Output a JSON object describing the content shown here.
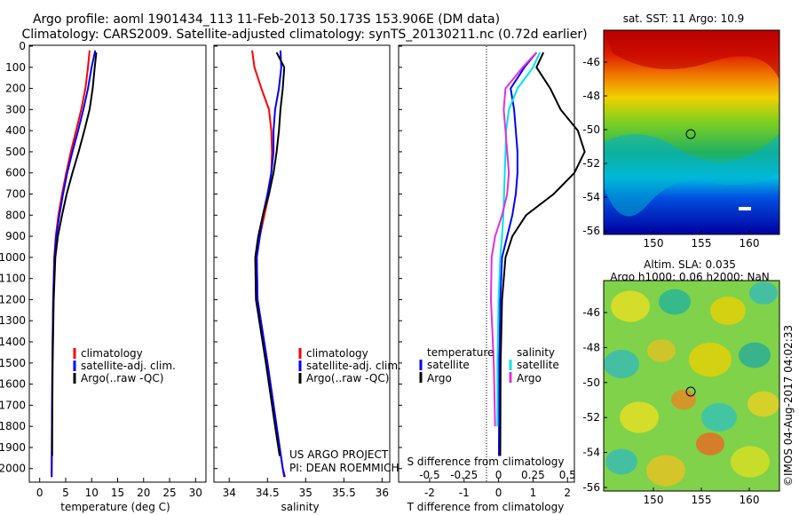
{
  "title": {
    "line1": "Argo profile: aoml 1901434_113 11-Feb-2013 50.173S 153.906E (DM data)",
    "line2": "Climatology: CARS2009. Satellite-adjusted climatology: synTS_20130211.nc (0.72d earlier)"
  },
  "colors": {
    "climatology": "#ff0000",
    "satellite": "#0000ff",
    "argo": "#000000",
    "s_satellite": "#00e5e5",
    "s_argo": "#e030e0"
  },
  "depth_axis": {
    "ticks": [
      0,
      100,
      200,
      300,
      400,
      500,
      600,
      700,
      800,
      900,
      1000,
      1100,
      1200,
      1300,
      1400,
      1500,
      1600,
      1700,
      1800,
      1900,
      2000
    ],
    "range": [
      0,
      2060
    ]
  },
  "panels": {
    "temperature": {
      "xlabel": "temperature (deg C)",
      "xticks": [
        0,
        5,
        10,
        15,
        20,
        25,
        30
      ],
      "xlim": [
        -2,
        32
      ],
      "legend": [
        "climatology",
        "satellite-adj. clim.",
        "Argo(..raw -QC)"
      ]
    },
    "salinity": {
      "xlabel": "salinity",
      "xticks": [
        34,
        34.5,
        35,
        35.5,
        36
      ],
      "xlim": [
        33.8,
        36.1
      ],
      "legend": [
        "climatology",
        "satellite-adj. clim.",
        "Argo(..raw -QC)"
      ],
      "credit1": "US ARGO PROJECT",
      "credit2": "PI: DEAN ROEMMICH"
    },
    "difference": {
      "xlabel": "T difference from climatology",
      "xticks": [
        "-2",
        "-1",
        "0",
        "1",
        "2"
      ],
      "xlim": [
        -2.9,
        2.2
      ],
      "top_label": "S difference from climatology",
      "top_ticks": [
        "-0.5",
        "-0.25",
        "0",
        "0.25",
        "0.5"
      ],
      "legend_t_title": "temperature",
      "legend_s_title": "salinity",
      "legend_items": [
        "satellite",
        "Argo"
      ]
    }
  },
  "maps": {
    "sst": {
      "title": "sat. SST: 11 Argo: 10.9",
      "yticks": [
        "-46",
        "-48",
        "-50",
        "-52",
        "-54",
        "-56"
      ],
      "xticks": [
        "150",
        "155",
        "160"
      ]
    },
    "sla": {
      "title1": "Altim. SLA: 0.035",
      "title2": "Argo h1000: 0.06 h2000: NaN",
      "yticks": [
        "-46",
        "-48",
        "-50",
        "-52",
        "-54",
        "-56"
      ],
      "xticks": [
        "150",
        "155",
        "160"
      ]
    },
    "float_position": {
      "lon": 153.906,
      "lat": -50.173
    }
  },
  "footer": "©IMOS 04-Aug-2017 04:02:33",
  "chart_data": [
    {
      "type": "line",
      "title": "",
      "xlabel": "temperature (deg C)",
      "ylabel": "",
      "xlim": [
        -2,
        32
      ],
      "ylim": [
        2060,
        0
      ],
      "series": [
        {
          "name": "climatology",
          "x": [
            9.6,
            9.3,
            8.8,
            8.0,
            7.0,
            6.0,
            5.1,
            4.3,
            3.6,
            3.1,
            2.8,
            2.6,
            2.45,
            2.35,
            2.3
          ],
          "y": [
            20,
            100,
            200,
            300,
            400,
            500,
            600,
            700,
            800,
            900,
            1000,
            1200,
            1500,
            1800,
            2040
          ]
        },
        {
          "name": "satellite-adj. clim.",
          "x": [
            10.7,
            10.0,
            9.3,
            8.4,
            7.4,
            6.3,
            5.3,
            4.5,
            3.8,
            3.2,
            2.85,
            2.6,
            2.45,
            2.35,
            2.3
          ],
          "y": [
            20,
            100,
            200,
            300,
            400,
            500,
            600,
            700,
            800,
            900,
            1000,
            1200,
            1500,
            1800,
            2040
          ]
        },
        {
          "name": "Argo(..raw -QC)",
          "x": [
            10.9,
            10.6,
            10.2,
            9.6,
            8.6,
            7.5,
            6.3,
            5.2,
            4.3,
            3.5,
            3.0,
            2.7,
            2.5,
            2.4,
            2.4
          ],
          "y": [
            30,
            100,
            200,
            300,
            400,
            500,
            600,
            700,
            800,
            900,
            1000,
            1200,
            1500,
            1800,
            1940
          ]
        }
      ]
    },
    {
      "type": "line",
      "title": "",
      "xlabel": "salinity",
      "ylabel": "",
      "xlim": [
        33.8,
        36.1
      ],
      "ylim": [
        2060,
        0
      ],
      "series": [
        {
          "name": "climatology",
          "x": [
            34.3,
            34.33,
            34.42,
            34.52,
            34.55,
            34.56,
            34.55,
            34.52,
            34.46,
            34.4,
            34.36,
            34.37,
            34.5,
            34.62,
            34.7,
            34.73
          ],
          "y": [
            20,
            100,
            200,
            300,
            400,
            500,
            600,
            700,
            800,
            900,
            1000,
            1200,
            1500,
            1800,
            2000,
            2040
          ]
        },
        {
          "name": "satellite-adj. clim.",
          "x": [
            34.67,
            34.68,
            34.65,
            34.6,
            34.58,
            34.58,
            34.55,
            34.5,
            34.44,
            34.4,
            34.36,
            34.37,
            34.5,
            34.62,
            34.7,
            34.72
          ],
          "y": [
            20,
            100,
            200,
            300,
            400,
            500,
            600,
            700,
            800,
            900,
            1000,
            1200,
            1500,
            1800,
            2000,
            2040
          ]
        },
        {
          "name": "Argo(..raw -QC)",
          "x": [
            34.62,
            34.72,
            34.7,
            34.67,
            34.65,
            34.62,
            34.58,
            34.52,
            34.44,
            34.38,
            34.34,
            34.35,
            34.48,
            34.6,
            34.66
          ],
          "y": [
            30,
            100,
            200,
            300,
            400,
            500,
            600,
            700,
            800,
            900,
            1000,
            1200,
            1500,
            1800,
            1940
          ]
        }
      ]
    },
    {
      "type": "line",
      "title": "",
      "xlabel": "T difference from climatology",
      "ylabel": "",
      "xlim": [
        -2.9,
        2.2
      ],
      "ylim": [
        2060,
        0
      ],
      "series": [
        {
          "name": "temperature satellite",
          "x": [
            1.1,
            0.75,
            0.35,
            0.45,
            0.5,
            0.55,
            0.55,
            0.5,
            0.4,
            0.25,
            0.1,
            0.05,
            0.02,
            0.01
          ],
          "y": [
            30,
            100,
            200,
            300,
            400,
            500,
            600,
            700,
            800,
            900,
            1000,
            1200,
            1500,
            1940
          ]
        },
        {
          "name": "temperature Argo",
          "x": [
            1.3,
            1.1,
            1.5,
            1.8,
            2.3,
            2.5,
            2.2,
            1.6,
            0.8,
            0.4,
            0.2,
            0.1,
            0.06,
            0.05
          ],
          "y": [
            30,
            100,
            200,
            300,
            400,
            500,
            600,
            700,
            800,
            900,
            1000,
            1200,
            1500,
            1940
          ]
        },
        {
          "name": "salinity satellite",
          "x": [
            1.2,
            1.0,
            0.55,
            0.3,
            0.22,
            0.2,
            0.18,
            0.16,
            0.14,
            0.1,
            0.05,
            0.0,
            -0.03,
            -0.03
          ],
          "y": [
            30,
            100,
            200,
            300,
            400,
            500,
            600,
            700,
            800,
            900,
            1000,
            1200,
            1500,
            1800
          ]
        },
        {
          "name": "salinity Argo",
          "x": [
            1.1,
            0.7,
            0.2,
            0.15,
            0.2,
            0.25,
            0.3,
            0.25,
            0.1,
            -0.1,
            -0.2,
            -0.22,
            -0.14,
            -0.1
          ],
          "y": [
            30,
            100,
            200,
            300,
            400,
            500,
            600,
            700,
            800,
            900,
            1000,
            1200,
            1500,
            1800
          ]
        }
      ]
    }
  ]
}
